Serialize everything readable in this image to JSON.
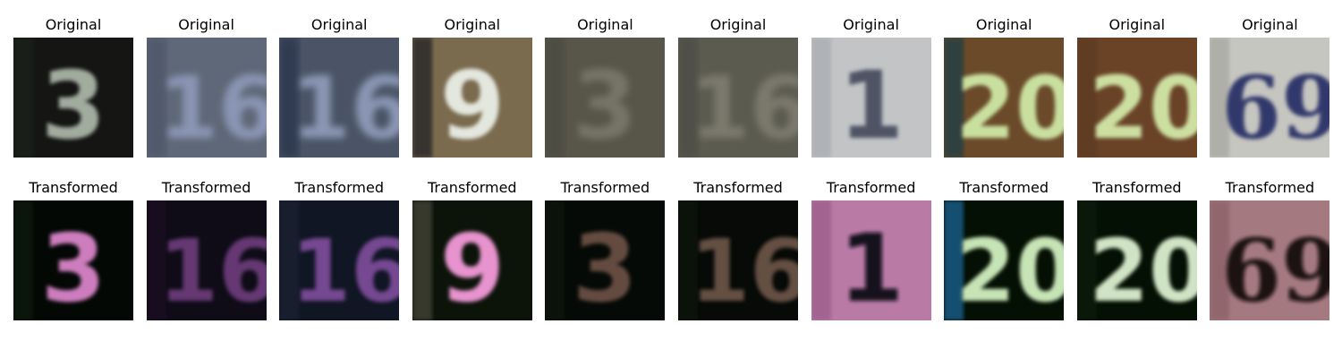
{
  "rows": [
    {
      "title": "Original",
      "tiles": [
        {
          "digits": "3",
          "bg": "#151614",
          "fg": "#a9b3a6",
          "dark": "#1d211c"
        },
        {
          "digits": "16",
          "bg": "#5f6878",
          "fg": "#8d98b8",
          "dark": "#4c5466"
        },
        {
          "digits": "16",
          "bg": "#4a5466",
          "fg": "#8e9ab8",
          "dark": "#26304a"
        },
        {
          "digits": "9",
          "bg": "#7a6a4e",
          "fg": "#e9eee6",
          "dark": "#1c1e24"
        },
        {
          "digits": "3",
          "bg": "#575649",
          "fg": "#8a8a7a",
          "dark": "#4a4a40"
        },
        {
          "digits": "16",
          "bg": "#5c5b50",
          "fg": "#908e80",
          "dark": "#4c4c44"
        },
        {
          "digits": "1",
          "bg": "#c2c4c6",
          "fg": "#4a5060",
          "dark": "#a8abb0"
        },
        {
          "digits": "20",
          "bg": "#6b4a2a",
          "fg": "#cfe8a6",
          "dark": "#173d48"
        },
        {
          "digits": "20",
          "bg": "#6a4327",
          "fg": "#d2e8a8",
          "dark": "#5a3a22"
        },
        {
          "digits": "69",
          "bg": "#c6c6c0",
          "fg": "#2a3168",
          "dark": "#a6a6a0"
        }
      ]
    },
    {
      "title": "Transformed",
      "tiles": [
        {
          "digits": "3",
          "bg": "#030805",
          "fg": "#d884c8",
          "dark": "#0d1a0c"
        },
        {
          "digits": "16",
          "bg": "#0f0c18",
          "fg": "#6a3a78",
          "dark": "#1a0f24"
        },
        {
          "digits": "16",
          "bg": "#101624",
          "fg": "#7c4c98",
          "dark": "#1c2030"
        },
        {
          "digits": "9",
          "bg": "#0c140a",
          "fg": "#f39ad8",
          "dark": "#4a4a3a"
        },
        {
          "digits": "3",
          "bg": "#060a06",
          "fg": "#6a5044",
          "dark": "#0e140e"
        },
        {
          "digits": "16",
          "bg": "#070a06",
          "fg": "#6a5246",
          "dark": "#10140e"
        },
        {
          "digits": "1",
          "bg": "#b97aa6",
          "fg": "#0a0a12",
          "dark": "#9a5a88"
        },
        {
          "digits": "20",
          "bg": "#041004",
          "fg": "#d2f0c0",
          "dark": "#1a6aa0"
        },
        {
          "digits": "20",
          "bg": "#031003",
          "fg": "#dcf0d0",
          "dark": "#0a1a0a"
        },
        {
          "digits": "69",
          "bg": "#a47a80",
          "fg": "#141010",
          "dark": "#8a6066"
        }
      ]
    }
  ]
}
